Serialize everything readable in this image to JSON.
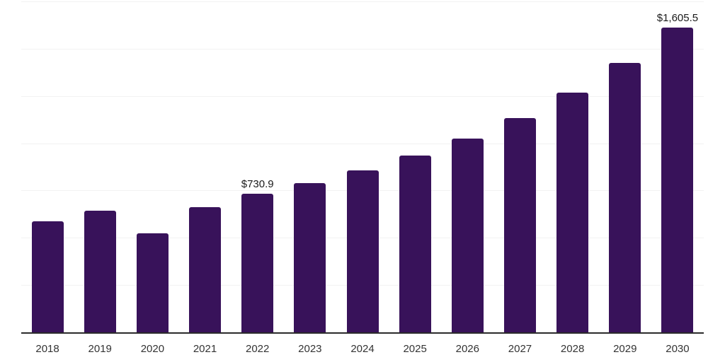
{
  "chart_data": {
    "type": "bar",
    "categories": [
      "2018",
      "2019",
      "2020",
      "2021",
      "2022",
      "2023",
      "2024",
      "2025",
      "2026",
      "2027",
      "2028",
      "2029",
      "2030"
    ],
    "values": [
      584,
      640,
      522,
      661,
      730.9,
      787,
      854,
      932,
      1023,
      1131,
      1263,
      1421,
      1605.5
    ],
    "data_labels": {
      "2022": "$730.9",
      "2030": "$1,605.5"
    },
    "title": "",
    "xlabel": "",
    "ylabel": "",
    "ylim": [
      0,
      1745
    ],
    "gridline_count": 7,
    "grid": "horizontal",
    "legend_position": "none",
    "bar_color": "#38125a",
    "gridline_color": "#f2f2f2",
    "axis_line_color": "#2b2b2b",
    "data_label_color": "#1a1a1a",
    "tick_label_color": "#333333"
  }
}
